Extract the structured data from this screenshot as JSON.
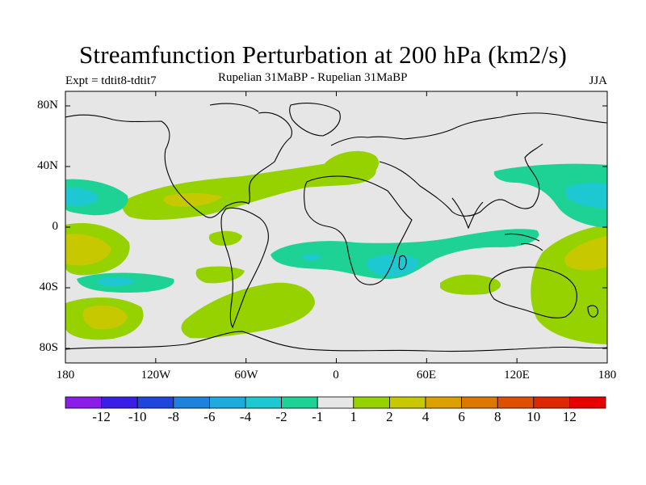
{
  "title": "Streamfunction Perturbation at 200 hPa (km2/s)",
  "left_label": "Expt = tdtit8-tdtit7",
  "center_label": "Rupelian  31MaBP - Rupelian  31MaBP",
  "right_label": "JJA",
  "lat_labels": [
    "80N",
    "40N",
    "0",
    "40S",
    "80S"
  ],
  "lon_labels": [
    "180",
    "120W",
    "60W",
    "0",
    "60E",
    "120E",
    "180"
  ],
  "colorbar": {
    "labels": [
      "-12",
      "-10",
      "-8",
      "-6",
      "-4",
      "-2",
      "-1",
      "1",
      "2",
      "4",
      "6",
      "8",
      "10",
      "12"
    ],
    "colors": [
      "#8a1ee6",
      "#3b1ee6",
      "#1e46dc",
      "#1e82dc",
      "#1eaadc",
      "#1ec8d2",
      "#1ed296",
      "#e6e6e6",
      "#96d200",
      "#c8c800",
      "#dca000",
      "#dc7800",
      "#dc5000",
      "#dc2800",
      "#e60000"
    ]
  },
  "map_colors": {
    "background": "#e6e6e6",
    "c_pos1": "#96d200",
    "c_pos2": "#c8c800",
    "c_neg1": "#1ed296",
    "c_neg2": "#1ec8d2",
    "c_neg3": "#1eaadc",
    "coast": "#000000"
  }
}
